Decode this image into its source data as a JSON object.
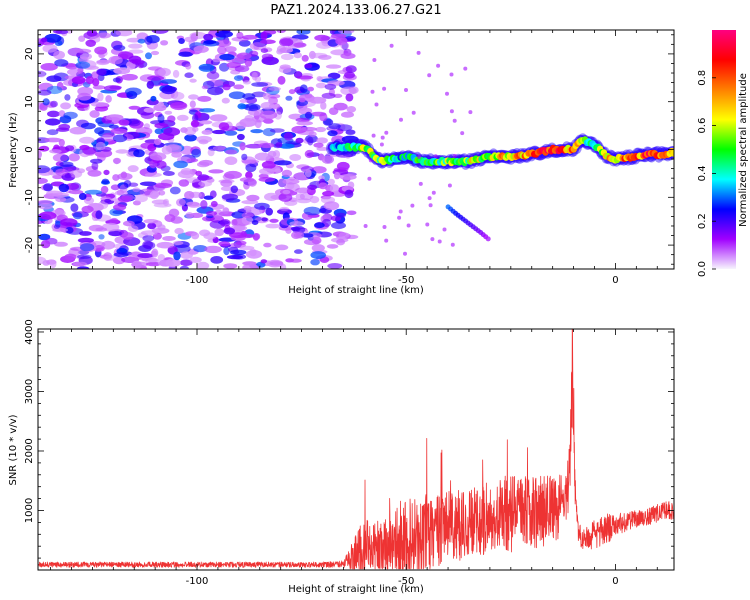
{
  "title": "PAZ1.2024.133.06.27.G21",
  "chart_data": [
    {
      "type": "heatmap",
      "xlabel": "Height of straight line (km)",
      "ylabel": "Frequency (Hz)",
      "xlim": [
        -138,
        14
      ],
      "ylim": [
        -25,
        25
      ],
      "xticks": [
        -100,
        -50,
        0
      ],
      "yticks": [
        -20,
        -10,
        0,
        10,
        20
      ],
      "colorbar": {
        "label": "Normalized spectral amplitude",
        "range": [
          0,
          1
        ],
        "ticks": [
          0.0,
          0.2,
          0.4,
          0.6,
          0.8
        ],
        "colormap": [
          "#f7f4fd",
          "#a000ff",
          "#0000ff",
          "#00ffff",
          "#00ff00",
          "#ffff00",
          "#ff8000",
          "#ff0000",
          "#ff0080"
        ]
      },
      "noise_region": {
        "x": [
          -138,
          -63
        ],
        "y": [
          -25,
          25
        ],
        "amplitude": [
          0.05,
          0.3
        ]
      },
      "ridge": {
        "x": [
          -68,
          -60,
          -56,
          -50,
          -46,
          -40,
          -35,
          -30,
          -25,
          -20,
          -15,
          -10,
          -8,
          -5,
          -2,
          0,
          4,
          8,
          12,
          14
        ],
        "frequency": [
          0.5,
          0.5,
          -2.5,
          -1.5,
          -2.5,
          -2.5,
          -2.5,
          -1.5,
          -1.5,
          -1,
          0,
          0,
          2,
          1,
          -1.5,
          -2,
          -1.5,
          -1,
          -1,
          -0.5
        ],
        "amplitude": [
          0.3,
          0.55,
          0.5,
          0.35,
          0.45,
          0.5,
          0.55,
          0.6,
          0.7,
          0.75,
          0.85,
          0.7,
          0.5,
          0.5,
          0.6,
          0.7,
          0.75,
          0.8,
          0.8,
          0.75
        ]
      },
      "secondary_branch": {
        "x": [
          -40,
          -38,
          -35,
          -32,
          -30
        ],
        "frequency": [
          -12,
          -13.5,
          -15.5,
          -17.5,
          -19
        ],
        "amplitude": [
          0.3,
          0.25,
          0.2,
          0.15,
          0.1
        ]
      }
    },
    {
      "type": "line",
      "xlabel": "Height of straight line (km)",
      "ylabel": "SNR (10 * v/v)",
      "xlim": [
        -138,
        14
      ],
      "ylim": [
        0,
        4050
      ],
      "xticks": [
        -100,
        -50,
        0
      ],
      "yticks": [
        1000,
        2000,
        3000,
        4000
      ],
      "color": "#ee3333",
      "envelope": {
        "x": [
          -138,
          -70,
          -65,
          -63,
          -60,
          -58,
          -55,
          -52,
          -48,
          -44,
          -40,
          -36,
          -32,
          -28,
          -24,
          -20,
          -17,
          -14,
          -12,
          -11,
          -10.5,
          -10,
          -9.5,
          -9,
          -8,
          -5,
          -2,
          0,
          4,
          8,
          12,
          14
        ],
        "baseline": [
          90,
          90,
          100,
          200,
          350,
          400,
          420,
          450,
          550,
          650,
          720,
          770,
          850,
          900,
          950,
          980,
          1000,
          1050,
          1100,
          1500,
          3000,
          2500,
          1200,
          700,
          500,
          600,
          700,
          750,
          850,
          900,
          1000,
          1000
        ],
        "amplitude": [
          45,
          45,
          55,
          250,
          550,
          400,
          450,
          600,
          700,
          650,
          600,
          600,
          600,
          600,
          650,
          600,
          650,
          550,
          500,
          600,
          900,
          800,
          300,
          200,
          150,
          250,
          250,
          200,
          150,
          150,
          150,
          150
        ]
      }
    }
  ]
}
